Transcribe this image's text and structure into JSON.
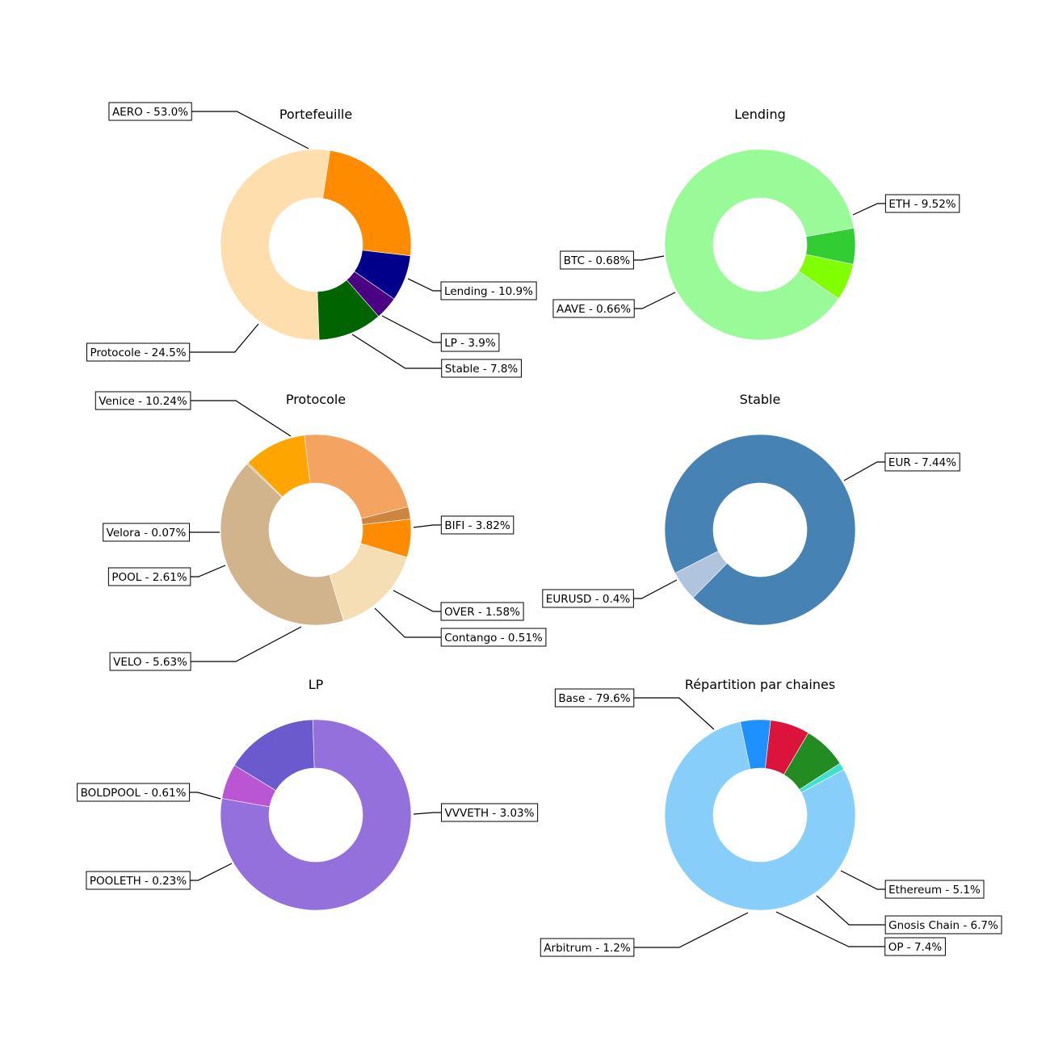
{
  "chart_data": [
    {
      "type": "pie",
      "donut": true,
      "title": "Portefeuille",
      "slices": [
        {
          "label": "AERO - 53.0%",
          "value": 53.0,
          "color": "#FFDEAD"
        },
        {
          "label": "Protocole - 24.5%",
          "value": 24.5,
          "color": "#FF8C00"
        },
        {
          "label": "Stable - 7.8%",
          "value": 7.8,
          "color": "#00008B"
        },
        {
          "label": "LP - 3.9%",
          "value": 3.9,
          "color": "#4B0082"
        },
        {
          "label": "Lending - 10.9%",
          "value": 10.9,
          "color": "#006400"
        }
      ]
    },
    {
      "type": "pie",
      "donut": true,
      "title": "Lending",
      "slices": [
        {
          "label": "ETH - 9.52%",
          "value": 9.52,
          "color": "#98FB98"
        },
        {
          "label": "BTC - 0.68%",
          "value": 0.68,
          "color": "#7FFF00"
        },
        {
          "label": "AAVE - 0.66%",
          "value": 0.66,
          "color": "#32CD32"
        }
      ]
    },
    {
      "type": "pie",
      "donut": true,
      "title": "Protocole",
      "slices": [
        {
          "label": "Venice - 10.24%",
          "value": 10.24,
          "color": "#D2B48C"
        },
        {
          "label": "Velora - 0.07%",
          "value": 0.07,
          "color": "#DEB887"
        },
        {
          "label": "POOL - 2.61%",
          "value": 2.61,
          "color": "#FFA500"
        },
        {
          "label": "VELO - 5.63%",
          "value": 5.63,
          "color": "#F4A460"
        },
        {
          "label": "Contango - 0.51%",
          "value": 0.51,
          "color": "#CD853F"
        },
        {
          "label": "OVER - 1.58%",
          "value": 1.58,
          "color": "#FF8C00"
        },
        {
          "label": "BIFI - 3.82%",
          "value": 3.82,
          "color": "#F5DEB3"
        }
      ]
    },
    {
      "type": "pie",
      "donut": true,
      "title": "Stable",
      "slices": [
        {
          "label": "EUR - 7.44%",
          "value": 7.44,
          "color": "#4682B4"
        },
        {
          "label": "EURUSD - 0.4%",
          "value": 0.4,
          "color": "#B0C4DE"
        }
      ]
    },
    {
      "type": "pie",
      "donut": true,
      "title": "LP",
      "slices": [
        {
          "label": "VVVETH - 3.03%",
          "value": 3.03,
          "color": "#9370DB"
        },
        {
          "label": "BOLDPOOL - 0.61%",
          "value": 0.61,
          "color": "#6A5ACD"
        },
        {
          "label": "POOLETH - 0.23%",
          "value": 0.23,
          "color": "#BA55D3"
        }
      ]
    },
    {
      "type": "pie",
      "donut": true,
      "title": "Répartition par chaines",
      "slices": [
        {
          "label": "Base - 79.6%",
          "value": 79.6,
          "color": "#87CEFA"
        },
        {
          "label": "Arbitrum - 1.2%",
          "value": 1.2,
          "color": "#40E0D0"
        },
        {
          "label": "OP - 7.4%",
          "value": 7.4,
          "color": "#228B22"
        },
        {
          "label": "Gnosis Chain - 6.7%",
          "value": 6.7,
          "color": "#DC143C"
        },
        {
          "label": "Ethereum - 5.1%",
          "value": 5.1,
          "color": "#1E90FF"
        }
      ]
    }
  ]
}
